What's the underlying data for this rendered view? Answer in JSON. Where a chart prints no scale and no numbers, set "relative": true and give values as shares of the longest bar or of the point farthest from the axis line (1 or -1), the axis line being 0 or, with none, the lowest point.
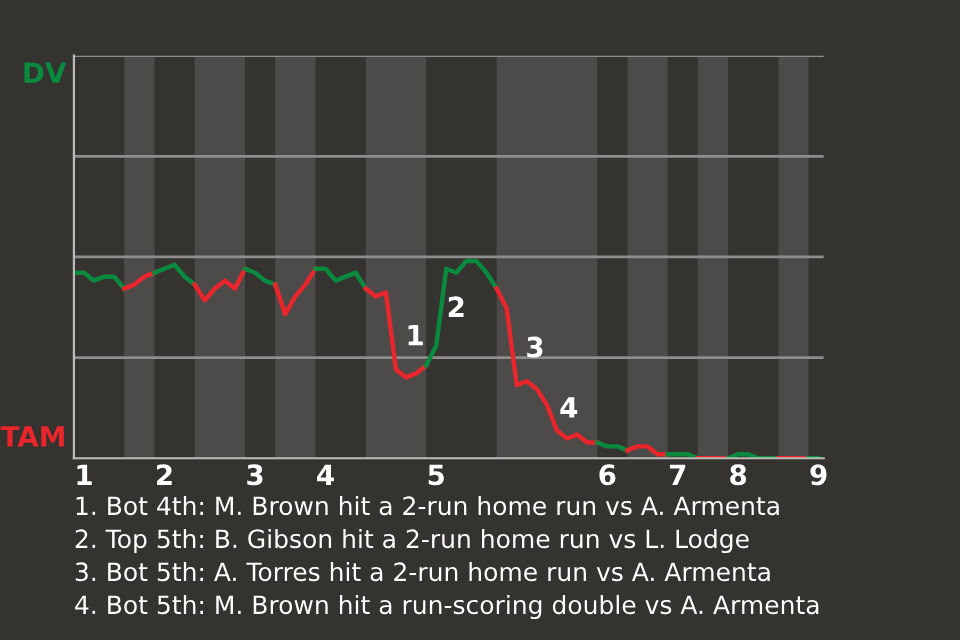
{
  "chart_data": {
    "type": "line",
    "relative": true,
    "categories": [
      null,
      "1",
      null,
      null,
      null,
      null,
      null,
      null,
      null,
      "2",
      null,
      null,
      null,
      null,
      null,
      null,
      null,
      null,
      "3",
      null,
      null,
      null,
      null,
      null,
      null,
      "4",
      null,
      null,
      null,
      null,
      null,
      null,
      null,
      null,
      null,
      null,
      "5",
      null,
      null,
      null,
      null,
      null,
      null,
      null,
      null,
      null,
      null,
      null,
      null,
      null,
      null,
      null,
      null,
      "6",
      null,
      null,
      null,
      null,
      null,
      null,
      "7",
      null,
      null,
      null,
      null,
      null,
      "8",
      null,
      null,
      null,
      null,
      null,
      null,
      null,
      "9"
    ],
    "series": [
      {
        "color": "#0a8a3e",
        "values": [
          0.94,
          0.94,
          0.9,
          0.92,
          0.92,
          0.86,
          null,
          null,
          null,
          null,
          null,
          null,
          null,
          null,
          null,
          null,
          null,
          null,
          null,
          null,
          null,
          null,
          null,
          null,
          null,
          null,
          null,
          null,
          null,
          null,
          null,
          null,
          null,
          null,
          null,
          null,
          null,
          null,
          null,
          null,
          null,
          null,
          null,
          null,
          null,
          null,
          null,
          null,
          null,
          null,
          null,
          null,
          null,
          null,
          null,
          null,
          null,
          null,
          null,
          null,
          null,
          null,
          null,
          null,
          null,
          null,
          null,
          null,
          null,
          null,
          null,
          null,
          null,
          null,
          null
        ]
      },
      {
        "color": "#e8262b",
        "values": [
          null,
          null,
          null,
          null,
          null,
          0.86,
          0.88,
          0.92,
          0.94,
          null,
          null,
          null,
          null,
          null,
          null,
          null,
          null,
          null,
          null,
          null,
          null,
          null,
          null,
          null,
          null,
          null,
          null,
          null,
          null,
          null,
          null,
          null,
          null,
          null,
          null,
          null,
          null,
          null,
          null,
          null,
          null,
          null,
          null,
          null,
          null,
          null,
          null,
          null,
          null,
          null,
          null,
          null,
          null,
          null,
          null,
          null,
          null,
          null,
          null,
          null,
          null,
          null,
          null,
          null,
          null,
          null,
          null,
          null,
          null,
          null,
          null,
          null,
          null,
          null,
          null
        ]
      },
      {
        "color": "#0a8a3e",
        "values": [
          null,
          null,
          null,
          null,
          null,
          null,
          null,
          null,
          0.94,
          0.96,
          0.98,
          0.92,
          0.88,
          null,
          null,
          null,
          null,
          null,
          null,
          null,
          null,
          null,
          null,
          null,
          null,
          null,
          null,
          null,
          null,
          null,
          null,
          null,
          null,
          null,
          null,
          null,
          null,
          null,
          null,
          null,
          null,
          null,
          null,
          null,
          null,
          null,
          null,
          null,
          null,
          null,
          null,
          null,
          null,
          null,
          null,
          null,
          null,
          null,
          null,
          null,
          null,
          null,
          null,
          null,
          null,
          null,
          null,
          null,
          null,
          null,
          null,
          null,
          null,
          null,
          null
        ]
      },
      {
        "color": "#e8262b",
        "values": [
          null,
          null,
          null,
          null,
          null,
          null,
          null,
          null,
          null,
          null,
          null,
          null,
          0.88,
          0.8,
          0.86,
          0.9,
          0.86,
          0.96,
          null,
          null,
          null,
          null,
          null,
          null,
          null,
          null,
          null,
          null,
          null,
          null,
          null,
          null,
          null,
          null,
          null,
          null,
          null,
          null,
          null,
          null,
          null,
          null,
          null,
          null,
          null,
          null,
          null,
          null,
          null,
          null,
          null,
          null,
          null,
          null,
          null,
          null,
          null,
          null,
          null,
          null,
          null,
          null,
          null,
          null,
          null,
          null,
          null,
          null,
          null,
          null,
          null,
          null,
          null,
          null,
          null
        ]
      },
      {
        "color": "#0a8a3e",
        "values": [
          null,
          null,
          null,
          null,
          null,
          null,
          null,
          null,
          null,
          null,
          null,
          null,
          null,
          null,
          null,
          null,
          null,
          0.96,
          0.94,
          0.9,
          0.88,
          null,
          null,
          null,
          null,
          null,
          null,
          null,
          null,
          null,
          null,
          null,
          null,
          null,
          null,
          null,
          null,
          null,
          null,
          null,
          null,
          null,
          null,
          null,
          null,
          null,
          null,
          null,
          null,
          null,
          null,
          null,
          null,
          null,
          null,
          null,
          null,
          null,
          null,
          null,
          null,
          null,
          null,
          null,
          null,
          null,
          null,
          null,
          null,
          null,
          null,
          null,
          null,
          null,
          null
        ]
      },
      {
        "color": "#e8262b",
        "values": [
          null,
          null,
          null,
          null,
          null,
          null,
          null,
          null,
          null,
          null,
          null,
          null,
          null,
          null,
          null,
          null,
          null,
          null,
          null,
          null,
          0.88,
          0.73,
          0.82,
          0.88,
          0.96,
          null,
          null,
          null,
          null,
          null,
          null,
          null,
          null,
          null,
          null,
          null,
          null,
          null,
          null,
          null,
          null,
          null,
          null,
          null,
          null,
          null,
          null,
          null,
          null,
          null,
          null,
          null,
          null,
          null,
          null,
          null,
          null,
          null,
          null,
          null,
          null,
          null,
          null,
          null,
          null,
          null,
          null,
          null,
          null,
          null,
          null,
          null,
          null,
          null,
          null
        ]
      },
      {
        "color": "#0a8a3e",
        "values": [
          null,
          null,
          null,
          null,
          null,
          null,
          null,
          null,
          null,
          null,
          null,
          null,
          null,
          null,
          null,
          null,
          null,
          null,
          null,
          null,
          null,
          null,
          null,
          null,
          0.96,
          0.96,
          0.9,
          0.92,
          0.94,
          0.86,
          null,
          null,
          null,
          null,
          null,
          null,
          null,
          null,
          null,
          null,
          null,
          null,
          null,
          null,
          null,
          null,
          null,
          null,
          null,
          null,
          null,
          null,
          null,
          null,
          null,
          null,
          null,
          null,
          null,
          null,
          null,
          null,
          null,
          null,
          null,
          null,
          null,
          null,
          null,
          null,
          null,
          null,
          null,
          null,
          null
        ]
      },
      {
        "color": "#e8262b",
        "values": [
          null,
          null,
          null,
          null,
          null,
          null,
          null,
          null,
          null,
          null,
          null,
          null,
          null,
          null,
          null,
          null,
          null,
          null,
          null,
          null,
          null,
          null,
          null,
          null,
          null,
          null,
          null,
          null,
          null,
          0.86,
          0.82,
          0.84,
          0.45,
          0.41,
          0.43,
          0.47,
          null,
          null,
          null,
          null,
          null,
          null,
          null,
          null,
          null,
          null,
          null,
          null,
          null,
          null,
          null,
          null,
          null,
          null,
          null,
          null,
          null,
          null,
          null,
          null,
          null,
          null,
          null,
          null,
          null,
          null,
          null,
          null,
          null,
          null,
          null,
          null,
          null,
          null,
          null
        ]
      },
      {
        "color": "#0a8a3e",
        "values": [
          null,
          null,
          null,
          null,
          null,
          null,
          null,
          null,
          null,
          null,
          null,
          null,
          null,
          null,
          null,
          null,
          null,
          null,
          null,
          null,
          null,
          null,
          null,
          null,
          null,
          null,
          null,
          null,
          null,
          null,
          null,
          null,
          null,
          null,
          null,
          0.47,
          0.57,
          0.96,
          0.94,
          1,
          1,
          0.94,
          0.86,
          null,
          null,
          null,
          null,
          null,
          null,
          null,
          null,
          null,
          null,
          null,
          null,
          null,
          null,
          null,
          null,
          null,
          null,
          null,
          null,
          null,
          null,
          null,
          null,
          null,
          null,
          null,
          null,
          null,
          null,
          null,
          null
        ]
      },
      {
        "color": "#e8262b",
        "values": [
          null,
          null,
          null,
          null,
          null,
          null,
          null,
          null,
          null,
          null,
          null,
          null,
          null,
          null,
          null,
          null,
          null,
          null,
          null,
          null,
          null,
          null,
          null,
          null,
          null,
          null,
          null,
          null,
          null,
          null,
          null,
          null,
          null,
          null,
          null,
          null,
          null,
          null,
          null,
          null,
          null,
          null,
          0.86,
          0.76,
          0.37,
          0.39,
          0.35,
          0.27,
          0.14,
          0.1,
          0.12,
          0.08,
          0.08,
          null,
          null,
          null,
          null,
          null,
          null,
          null,
          null,
          null,
          null,
          null,
          null,
          null,
          null,
          null,
          null,
          null,
          null,
          null,
          null,
          null,
          null
        ]
      },
      {
        "color": "#0a8a3e",
        "values": [
          null,
          null,
          null,
          null,
          null,
          null,
          null,
          null,
          null,
          null,
          null,
          null,
          null,
          null,
          null,
          null,
          null,
          null,
          null,
          null,
          null,
          null,
          null,
          null,
          null,
          null,
          null,
          null,
          null,
          null,
          null,
          null,
          null,
          null,
          null,
          null,
          null,
          null,
          null,
          null,
          null,
          null,
          null,
          null,
          null,
          null,
          null,
          null,
          null,
          null,
          null,
          null,
          0.08,
          0.06,
          0.06,
          0.04,
          null,
          null,
          null,
          null,
          null,
          null,
          null,
          null,
          null,
          null,
          null,
          null,
          null,
          null,
          null,
          null,
          null,
          null,
          null
        ]
      },
      {
        "color": "#e8262b",
        "values": [
          null,
          null,
          null,
          null,
          null,
          null,
          null,
          null,
          null,
          null,
          null,
          null,
          null,
          null,
          null,
          null,
          null,
          null,
          null,
          null,
          null,
          null,
          null,
          null,
          null,
          null,
          null,
          null,
          null,
          null,
          null,
          null,
          null,
          null,
          null,
          null,
          null,
          null,
          null,
          null,
          null,
          null,
          null,
          null,
          null,
          null,
          null,
          null,
          null,
          null,
          null,
          null,
          null,
          null,
          null,
          0.04,
          0.06,
          0.06,
          0.02,
          0.02,
          null,
          null,
          null,
          null,
          null,
          null,
          null,
          null,
          null,
          null,
          null,
          null,
          null,
          null,
          null
        ]
      },
      {
        "color": "#0a8a3e",
        "values": [
          null,
          null,
          null,
          null,
          null,
          null,
          null,
          null,
          null,
          null,
          null,
          null,
          null,
          null,
          null,
          null,
          null,
          null,
          null,
          null,
          null,
          null,
          null,
          null,
          null,
          null,
          null,
          null,
          null,
          null,
          null,
          null,
          null,
          null,
          null,
          null,
          null,
          null,
          null,
          null,
          null,
          null,
          null,
          null,
          null,
          null,
          null,
          null,
          null,
          null,
          null,
          null,
          null,
          null,
          null,
          null,
          null,
          null,
          null,
          0.02,
          0.02,
          0.02,
          0,
          null,
          null,
          null,
          null,
          null,
          null,
          null,
          null,
          null,
          null,
          null,
          null
        ]
      },
      {
        "color": "#e8262b",
        "values": [
          null,
          null,
          null,
          null,
          null,
          null,
          null,
          null,
          null,
          null,
          null,
          null,
          null,
          null,
          null,
          null,
          null,
          null,
          null,
          null,
          null,
          null,
          null,
          null,
          null,
          null,
          null,
          null,
          null,
          null,
          null,
          null,
          null,
          null,
          null,
          null,
          null,
          null,
          null,
          null,
          null,
          null,
          null,
          null,
          null,
          null,
          null,
          null,
          null,
          null,
          null,
          null,
          null,
          null,
          null,
          null,
          null,
          null,
          null,
          null,
          null,
          null,
          0,
          0,
          0,
          0,
          null,
          null,
          null,
          null,
          null,
          null,
          null,
          null,
          null
        ]
      },
      {
        "color": "#0a8a3e",
        "values": [
          null,
          null,
          null,
          null,
          null,
          null,
          null,
          null,
          null,
          null,
          null,
          null,
          null,
          null,
          null,
          null,
          null,
          null,
          null,
          null,
          null,
          null,
          null,
          null,
          null,
          null,
          null,
          null,
          null,
          null,
          null,
          null,
          null,
          null,
          null,
          null,
          null,
          null,
          null,
          null,
          null,
          null,
          null,
          null,
          null,
          null,
          null,
          null,
          null,
          null,
          null,
          null,
          null,
          null,
          null,
          null,
          null,
          null,
          null,
          null,
          null,
          null,
          null,
          null,
          null,
          0,
          0.02,
          0.02,
          0,
          0,
          0,
          null,
          null,
          null,
          null
        ]
      },
      {
        "color": "#e8262b",
        "values": [
          null,
          null,
          null,
          null,
          null,
          null,
          null,
          null,
          null,
          null,
          null,
          null,
          null,
          null,
          null,
          null,
          null,
          null,
          null,
          null,
          null,
          null,
          null,
          null,
          null,
          null,
          null,
          null,
          null,
          null,
          null,
          null,
          null,
          null,
          null,
          null,
          null,
          null,
          null,
          null,
          null,
          null,
          null,
          null,
          null,
          null,
          null,
          null,
          null,
          null,
          null,
          null,
          null,
          null,
          null,
          null,
          null,
          null,
          null,
          null,
          null,
          null,
          null,
          null,
          null,
          null,
          null,
          null,
          null,
          null,
          0,
          0,
          0,
          0,
          null
        ]
      },
      {
        "color": "#0a8a3e",
        "values": [
          null,
          null,
          null,
          null,
          null,
          null,
          null,
          null,
          null,
          null,
          null,
          null,
          null,
          null,
          null,
          null,
          null,
          null,
          null,
          null,
          null,
          null,
          null,
          null,
          null,
          null,
          null,
          null,
          null,
          null,
          null,
          null,
          null,
          null,
          null,
          null,
          null,
          null,
          null,
          null,
          null,
          null,
          null,
          null,
          null,
          null,
          null,
          null,
          null,
          null,
          null,
          null,
          null,
          null,
          null,
          null,
          null,
          null,
          null,
          null,
          null,
          null,
          null,
          null,
          null,
          null,
          null,
          null,
          null,
          null,
          null,
          null,
          null,
          0,
          0
        ]
      }
    ],
    "ref_lines": [
      {
        "axis": "y",
        "value": 0.51,
        "color": "#8f8d8b"
      },
      {
        "axis": "y",
        "value": 1.02,
        "color": "#8f8d8b"
      },
      {
        "axis": "y",
        "value": 1.53,
        "color": "#8f8d8b"
      },
      {
        "axis": "y",
        "value": 2.04,
        "color": "#8f8d8b"
      }
    ],
    "annotations": [
      "DV",
      "TAM",
      "1",
      "2",
      "3",
      "4",
      "1. Bot 4th: M. Brown hit a 2-run home run vs A. Armenta",
      "2. Top 5th: B. Gibson hit a 2-run home run vs L. Lodge",
      "3. Bot 5th: A. Torres hit a 2-run home run vs A. Armenta",
      "4. Bot 5th: M. Brown hit a run-scoring double vs A. Armenta"
    ]
  }
}
